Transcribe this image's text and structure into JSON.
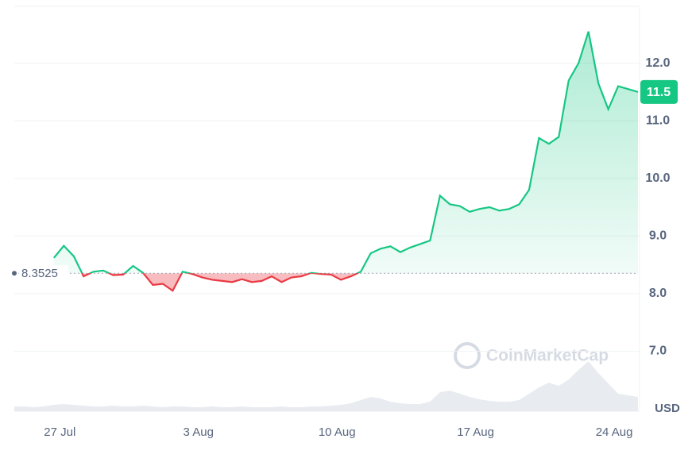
{
  "chart_data": {
    "type": "line",
    "categories": [
      null,
      null,
      null,
      null,
      null,
      "27 Jul",
      null,
      null,
      null,
      null,
      null,
      null,
      null,
      null,
      null,
      null,
      null,
      null,
      null,
      "3 Aug",
      null,
      null,
      null,
      null,
      null,
      null,
      null,
      null,
      null,
      null,
      null,
      null,
      null,
      "10 Aug",
      null,
      null,
      null,
      null,
      null,
      null,
      null,
      null,
      null,
      null,
      null,
      null,
      null,
      "17 Aug",
      null,
      null,
      null,
      null,
      null,
      null,
      null,
      null,
      null,
      null,
      null,
      null,
      null,
      "24 Aug",
      null,
      null
    ],
    "series": [
      {
        "name": "Price",
        "up_color": "#16c784",
        "down_color": "#ea3943",
        "values": [
          null,
          null,
          null,
          null,
          8.62,
          8.83,
          8.65,
          8.3,
          8.38,
          8.4,
          8.32,
          8.33,
          8.48,
          8.36,
          8.15,
          8.17,
          8.05,
          8.38,
          8.34,
          8.28,
          8.24,
          8.22,
          8.2,
          8.25,
          8.2,
          8.22,
          8.3,
          8.2,
          8.28,
          8.3,
          8.36,
          8.34,
          8.33,
          8.24,
          8.3,
          8.38,
          8.7,
          8.78,
          8.82,
          8.72,
          8.8,
          8.86,
          8.92,
          9.7,
          9.55,
          9.52,
          9.42,
          9.47,
          9.5,
          9.44,
          9.47,
          9.55,
          9.8,
          10.7,
          10.6,
          10.72,
          11.7,
          12.0,
          12.55,
          11.65,
          11.2,
          11.6,
          11.55,
          11.5
        ]
      },
      {
        "name": "Volume",
        "axis": "y2",
        "color": "#e6e9ee",
        "values": [
          6,
          6,
          5,
          6,
          8,
          9,
          8,
          7,
          6,
          6,
          7,
          6,
          6,
          7,
          6,
          5,
          6,
          6,
          5,
          5,
          6,
          5,
          5,
          6,
          5,
          5,
          5,
          6,
          5,
          5,
          6,
          6,
          7,
          8,
          10,
          14,
          18,
          16,
          12,
          10,
          9,
          9,
          12,
          24,
          26,
          22,
          18,
          15,
          13,
          12,
          12,
          14,
          22,
          30,
          36,
          32,
          40,
          52,
          63,
          48,
          35,
          22,
          20,
          18
        ]
      }
    ],
    "ylim": [
      6,
      13
    ],
    "yticks": [
      {
        "value": 7,
        "label": "7.0"
      },
      {
        "value": 8,
        "label": "8.0"
      },
      {
        "value": 9,
        "label": "9.0"
      },
      {
        "value": 10,
        "label": "10.0"
      },
      {
        "value": 11,
        "label": "11.0"
      },
      {
        "value": 12,
        "label": "12.0"
      }
    ],
    "y2lim": [
      0,
      100
    ],
    "grid": true,
    "baseline": {
      "value": 8.3525,
      "label": "8.3525"
    },
    "current_price": {
      "value": 11.5,
      "label": "11.5"
    },
    "unit": "USD",
    "watermark": "CoinMarketCap"
  }
}
